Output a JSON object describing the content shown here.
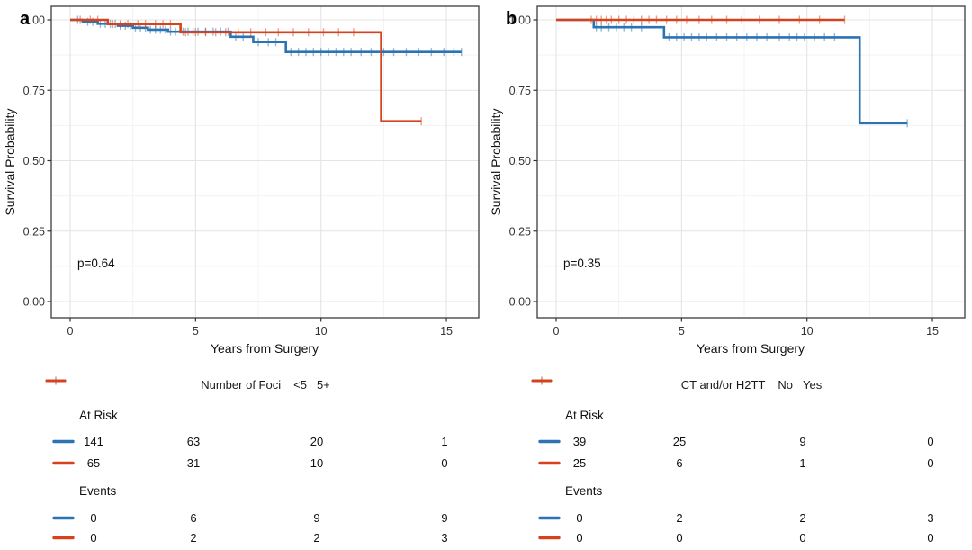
{
  "figure_type": "kaplan-meier-survival-figure",
  "colors": {
    "blue": "#2b73b3",
    "red": "#d6421c",
    "grid_major": "#e4e4e4",
    "grid_minor": "#f3f3f3",
    "panel_border": "#3c3c3c",
    "axis_text": "#333333",
    "text": "#111111"
  },
  "chart_data": [
    {
      "type": "line",
      "subtype": "kaplan-meier-step",
      "panel_label": "a",
      "xlabel": "Years from Surgery",
      "ylabel": "Survival Probability",
      "annotation": "p=0.64",
      "xlim": [
        -0.75,
        16.3
      ],
      "ylim": [
        -0.06,
        1.05
      ],
      "xticks": [
        0,
        5,
        10,
        15
      ],
      "xtick_labels": [
        "0",
        "5",
        "10",
        "15"
      ],
      "yticks": [
        0,
        0.25,
        0.5,
        0.75,
        1
      ],
      "ytick_labels": [
        "0.00",
        "0.25",
        "0.50",
        "0.75",
        "1.00"
      ],
      "grid": true,
      "legend": {
        "title": "Number of Foci",
        "position": "bottom"
      },
      "series": [
        {
          "name": "<5",
          "color": "#2b73b3",
          "steps": [
            [
              0,
              1.0
            ],
            [
              0.5,
              0.993
            ],
            [
              1.1,
              0.986
            ],
            [
              1.9,
              0.979
            ],
            [
              2.5,
              0.972
            ],
            [
              3.1,
              0.965
            ],
            [
              3.9,
              0.958
            ],
            [
              6.4,
              0.94
            ],
            [
              7.3,
              0.921
            ],
            [
              8.6,
              0.886
            ]
          ],
          "end_time": 15.6,
          "censor_times": [
            0.3,
            0.7,
            0.9,
            1.2,
            1.4,
            1.6,
            1.8,
            2.0,
            2.2,
            2.4,
            2.6,
            2.8,
            3.0,
            3.2,
            3.4,
            3.6,
            3.8,
            4.0,
            4.2,
            4.5,
            4.7,
            4.9,
            5.1,
            5.4,
            5.7,
            6.0,
            6.3,
            6.6,
            6.9,
            7.5,
            7.9,
            8.2,
            8.8,
            9.1,
            9.4,
            9.7,
            10.0,
            10.3,
            10.6,
            10.9,
            11.2,
            11.6,
            12.0,
            12.5,
            12.9,
            13.4,
            13.9,
            14.4,
            14.9,
            15.3,
            15.6
          ]
        },
        {
          "name": "5+",
          "color": "#d6421c",
          "steps": [
            [
              0,
              1.0
            ],
            [
              1.5,
              0.985
            ],
            [
              4.4,
              0.956
            ],
            [
              12.4,
              0.64
            ]
          ],
          "end_time": 14.0,
          "censor_times": [
            0.4,
            0.8,
            1.1,
            1.7,
            2.0,
            2.3,
            2.7,
            3.0,
            3.4,
            3.7,
            4.0,
            4.6,
            5.0,
            5.4,
            5.8,
            6.2,
            6.7,
            7.2,
            7.8,
            8.3,
            8.9,
            9.5,
            10.1,
            10.7,
            11.3,
            14.0
          ]
        }
      ],
      "risk_table": {
        "times": [
          0,
          5,
          10,
          15
        ],
        "sections": [
          {
            "label": "At Risk",
            "rows": [
              {
                "series": "<5",
                "color": "#2b73b3",
                "values": [
                  141,
                  63,
                  20,
                  1
                ]
              },
              {
                "series": "5+",
                "color": "#d6421c",
                "values": [
                  65,
                  31,
                  10,
                  0
                ]
              }
            ]
          },
          {
            "label": "Events",
            "rows": [
              {
                "series": "<5",
                "color": "#2b73b3",
                "values": [
                  0,
                  6,
                  9,
                  9
                ]
              },
              {
                "series": "5+",
                "color": "#d6421c",
                "values": [
                  0,
                  2,
                  2,
                  3
                ]
              }
            ]
          }
        ]
      }
    },
    {
      "type": "line",
      "subtype": "kaplan-meier-step",
      "panel_label": "b",
      "xlabel": "Years from Surgery",
      "ylabel": "Survival Probability",
      "annotation": "p=0.35",
      "xlim": [
        -0.75,
        16.3
      ],
      "ylim": [
        -0.06,
        1.05
      ],
      "xticks": [
        0,
        5,
        10,
        15
      ],
      "xtick_labels": [
        "0",
        "5",
        "10",
        "15"
      ],
      "yticks": [
        0,
        0.25,
        0.5,
        0.75,
        1
      ],
      "ytick_labels": [
        "0.00",
        "0.25",
        "0.50",
        "0.75",
        "1.00"
      ],
      "grid": true,
      "legend": {
        "title": "CT and/or H2TT",
        "position": "bottom"
      },
      "series": [
        {
          "name": "No",
          "color": "#2b73b3",
          "steps": [
            [
              0,
              1.0
            ],
            [
              1.5,
              0.974
            ],
            [
              4.3,
              0.938
            ],
            [
              12.1,
              0.633
            ]
          ],
          "end_time": 14.0,
          "censor_times": [
            1.6,
            1.8,
            2.1,
            2.4,
            2.7,
            3.0,
            3.4,
            4.5,
            4.8,
            5.1,
            5.4,
            5.7,
            6.0,
            6.4,
            6.8,
            7.2,
            7.6,
            8.0,
            8.4,
            8.9,
            9.3,
            9.6,
            9.9,
            10.3,
            10.7,
            11.1,
            14.0
          ]
        },
        {
          "name": "Yes",
          "color": "#d6421c",
          "steps": [
            [
              0,
              1.0
            ]
          ],
          "end_time": 11.5,
          "censor_times": [
            1.4,
            1.6,
            1.8,
            2.0,
            2.2,
            2.5,
            2.8,
            3.1,
            3.4,
            3.7,
            4.0,
            4.4,
            4.8,
            5.2,
            5.7,
            6.2,
            6.8,
            7.4,
            8.1,
            8.9,
            9.7,
            10.5,
            11.5
          ]
        }
      ],
      "risk_table": {
        "times": [
          0,
          5,
          10,
          15
        ],
        "sections": [
          {
            "label": "At Risk",
            "rows": [
              {
                "series": "No",
                "color": "#2b73b3",
                "values": [
                  39,
                  25,
                  9,
                  0
                ]
              },
              {
                "series": "Yes",
                "color": "#d6421c",
                "values": [
                  25,
                  6,
                  1,
                  0
                ]
              }
            ]
          },
          {
            "label": "Events",
            "rows": [
              {
                "series": "No",
                "color": "#2b73b3",
                "values": [
                  0,
                  2,
                  2,
                  3
                ]
              },
              {
                "series": "Yes",
                "color": "#d6421c",
                "values": [
                  0,
                  0,
                  0,
                  0
                ]
              }
            ]
          }
        ]
      }
    }
  ]
}
